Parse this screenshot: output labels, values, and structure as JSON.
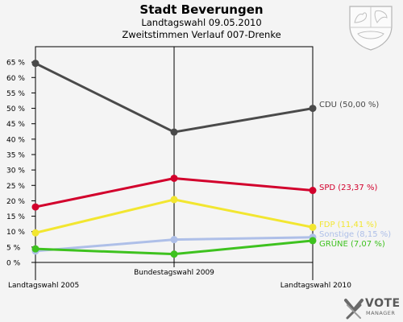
{
  "header": {
    "title": "Stadt Beverungen",
    "line1": "Landtagswahl 09.05.2010",
    "line2": "Zweitstimmen Verlauf 007-Drenke"
  },
  "logo": {
    "word": "VOTE",
    "sub": "MANAGER"
  },
  "chart_data": {
    "type": "line",
    "title": "Stadt Beverungen",
    "subtitle": "Landtagswahl 09.05.2010 – Zweitstimmen Verlauf 007-Drenke",
    "categories": [
      "Landtagswahl 2005",
      "Bundestagswahl 2009",
      "Landtagswahl 2010"
    ],
    "ylim": [
      0,
      70
    ],
    "yticks": [
      0,
      5,
      10,
      15,
      20,
      25,
      30,
      35,
      40,
      45,
      50,
      55,
      60,
      65
    ],
    "ytick_labels": [
      "0 %",
      "5 %",
      "10 %",
      "15 %",
      "20 %",
      "25 %",
      "30 %",
      "35 %",
      "40 %",
      "45 %",
      "50 %",
      "55 %",
      "60 %",
      "65 %"
    ],
    "grid": false,
    "series": [
      {
        "name": "CDU",
        "label": "CDU (50,00 %)",
        "color": "#4a4a4a",
        "values": [
          64.6,
          42.3,
          50.0
        ]
      },
      {
        "name": "SPD",
        "label": "SPD (23,37 %)",
        "color": "#d2002c",
        "values": [
          18.0,
          27.3,
          23.37
        ]
      },
      {
        "name": "FDP",
        "label": "FDP (11,41 %)",
        "color": "#f2e630",
        "values": [
          9.6,
          20.4,
          11.41
        ]
      },
      {
        "name": "Sonstige",
        "label": "Sonstige (8,15 %)",
        "color": "#aebfe8",
        "values": [
          3.7,
          7.4,
          8.15
        ]
      },
      {
        "name": "GRÜNE",
        "label": "GRÜNE (7,07 %)",
        "color": "#3ec21f",
        "values": [
          4.4,
          2.7,
          7.07
        ]
      }
    ]
  }
}
